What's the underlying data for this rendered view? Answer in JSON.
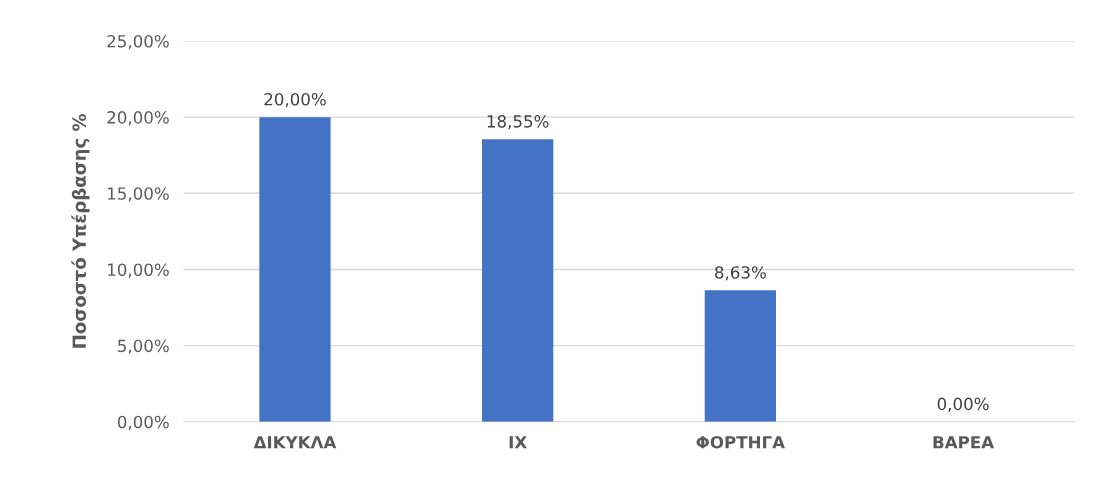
{
  "chart_data": {
    "type": "bar",
    "ylabel": "Ποσοστό Υπέρβασης %",
    "categories": [
      "ΔΙΚΥΚΛΑ",
      "ΙΧ",
      "ΦΟΡΤΗΓΑ",
      "ΒΑΡΕΑ"
    ],
    "values": [
      20.0,
      18.55,
      8.63,
      0.0
    ],
    "value_labels": [
      "20,00%",
      "18,55%",
      "8,63%",
      "0,00%"
    ],
    "color": "#4472c4",
    "ylim": [
      0,
      25
    ],
    "yticks": [
      {
        "value": 0,
        "label": "0,00%"
      },
      {
        "value": 5,
        "label": "5,00%"
      },
      {
        "value": 10,
        "label": "10,00%"
      },
      {
        "value": 15,
        "label": "15,00%"
      },
      {
        "value": 20,
        "label": "20,00%"
      },
      {
        "value": 25,
        "label": "25,00%"
      }
    ],
    "grid": "y"
  }
}
